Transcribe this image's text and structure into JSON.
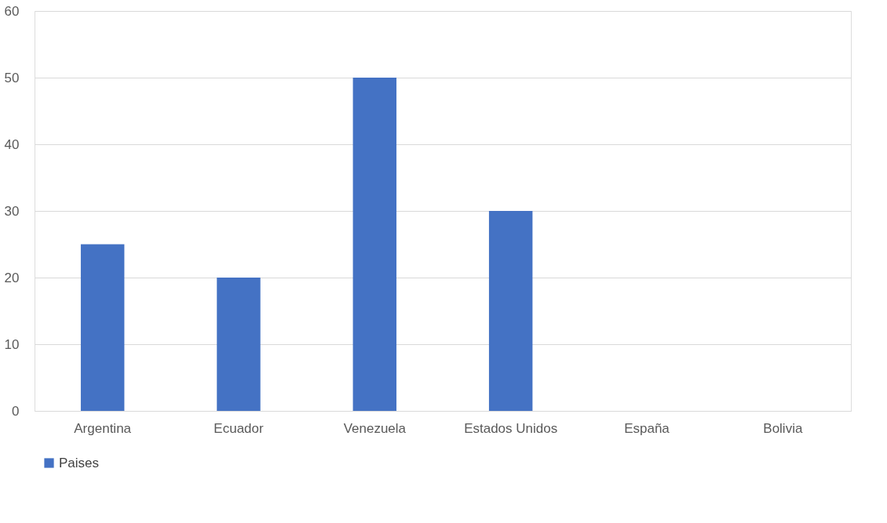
{
  "chart_data": {
    "type": "bar",
    "categories": [
      "Argentina",
      "Ecuador",
      "Venezuela",
      "Estados Unidos",
      "España",
      "Bolivia"
    ],
    "series": [
      {
        "name": "Paises",
        "color": "#4472c4",
        "values": [
          25,
          20,
          50,
          30,
          0,
          0
        ]
      }
    ],
    "ylim": [
      0,
      60
    ],
    "yticks": [
      0,
      10,
      20,
      30,
      40,
      50,
      60
    ],
    "grid": "y",
    "legend": "bottom"
  }
}
